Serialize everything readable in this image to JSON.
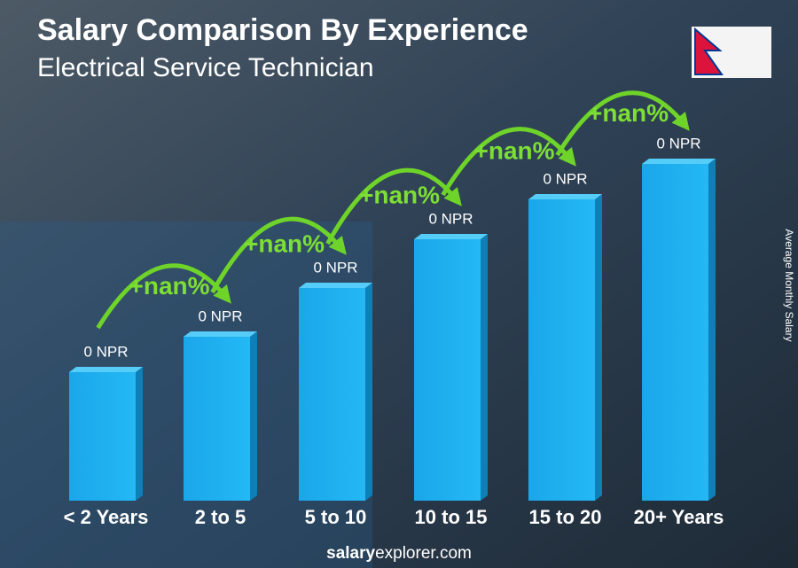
{
  "header": {
    "title": "Salary Comparison By Experience",
    "subtitle": "Electrical Service Technician"
  },
  "axis_label": "Average Monthly Salary",
  "groups": [
    {
      "category": "< 2 Years",
      "value_label": "0 NPR"
    },
    {
      "category": "2 to 5",
      "value_label": "0 NPR"
    },
    {
      "category": "5 to 10",
      "value_label": "0 NPR"
    },
    {
      "category": "10 to 15",
      "value_label": "0 NPR"
    },
    {
      "category": "15 to 20",
      "value_label": "0 NPR"
    },
    {
      "category": "20+ Years",
      "value_label": "0 NPR"
    }
  ],
  "changes": [
    "+nan%",
    "+nan%",
    "+nan%",
    "+nan%",
    "+nan%"
  ],
  "footer": {
    "brand_bold": "salary",
    "brand_rest": "explorer.com"
  }
}
